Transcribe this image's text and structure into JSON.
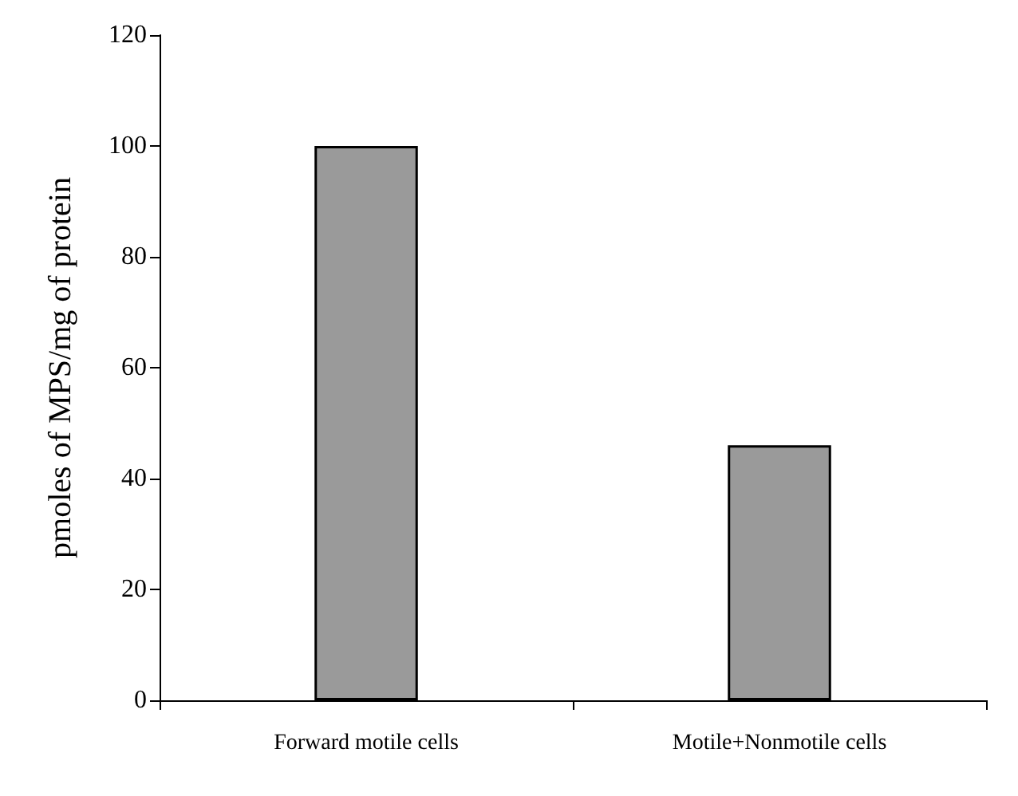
{
  "chart_data": {
    "type": "bar",
    "ylabel": "pmoles of MPS/mg of protein",
    "categories": [
      "Forward motile cells",
      "Motile+Nonmotile cells"
    ],
    "values": [
      100,
      46
    ],
    "color": "#9a9a9a",
    "ylim": [
      0,
      120
    ],
    "yticks": [
      0,
      20,
      40,
      60,
      80,
      100,
      120
    ],
    "grid": false
  }
}
